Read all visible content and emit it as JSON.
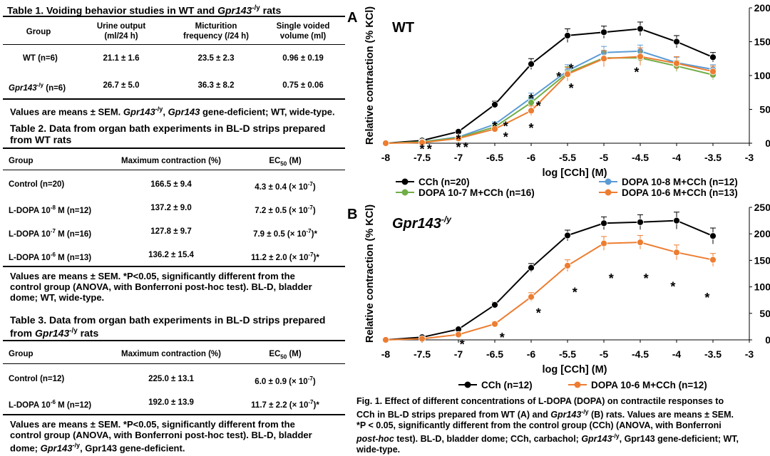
{
  "table1": {
    "title_prefix": "Table 1. Voiding behavior studies in WT and ",
    "title_gene": "Gpr143",
    "title_sup": "-/y",
    "title_suffix": " rats",
    "headers": [
      "Group",
      "Urine output",
      "(ml/24 h)",
      "Micturition",
      "frequency (/24 h)",
      "Single voided",
      "volume (ml)"
    ],
    "rows": [
      {
        "group": "WT (n=6)",
        "v1": "21.1 ± 1.6",
        "v2": "23.5 ± 2.3",
        "v3": "0.96 ± 0.19"
      },
      {
        "group_gene": "Gpr143",
        "group_sup": "-/y",
        "group_rest": " (n=6)",
        "v1": "26.7 ± 5.0",
        "v2": "36.3 ± 8.2",
        "v3": "0.75 ± 0.06"
      }
    ],
    "note_a": "Values are means ± SEM. ",
    "note_gene1": "Gpr143",
    "note_sup": "-/y",
    "note_b": ", ",
    "note_gene2": "Gpr143",
    "note_c": " gene-deficient; WT, wide-type."
  },
  "table2": {
    "title_line1": "Table 2. Data from organ bath experiments in BL-D strips prepared",
    "title_line2": "from WT rats",
    "headers": [
      "Group",
      "Maximum contraction (%)",
      "EC",
      "50",
      " (M)"
    ],
    "rows": [
      {
        "group": "Control (n=20)",
        "max": "166.5 ± 9.4",
        "ec": "4.3 ± 0.4 (× 10",
        "exp": "-7",
        "tail": ")"
      },
      {
        "group": "L-DOPA 10",
        "gexp": "-8",
        "grest": " M (n=12)",
        "max": "137.2 ± 9.0",
        "ec": "7.2 ± 0.5 (× 10",
        "exp": "-7",
        "tail": ")"
      },
      {
        "group": "L-DOPA 10",
        "gexp": "-7",
        "grest": " M (n=16)",
        "max": "127.8 ± 9.7",
        "ec": "7.9 ± 0.5 (× 10",
        "exp": "-7",
        "tail": ")*"
      },
      {
        "group": "L-DOPA 10",
        "gexp": "-6",
        "grest": " M (n=13)",
        "max": "136.2 ± 15.4",
        "ec": "11.2 ± 2.0 (× 10",
        "exp": "-7",
        "tail": ")*"
      }
    ],
    "note_line1": "Values are means ± SEM. *P<0.05, significantly different from the",
    "note_line2": "control group (ANOVA, with Bonferroni post-hoc test). BL-D, bladder",
    "note_line3": "dome; WT, wide-type."
  },
  "table3": {
    "title_line1": "Table 3. Data from organ bath experiments in BL-D strips prepared",
    "title_line2_a": "from ",
    "title_gene": "Gpr143",
    "title_sup": "-/y",
    "title_line2_b": " rats",
    "headers": [
      "Group",
      "Maximum contraction (%)",
      "EC",
      "50",
      " (M)"
    ],
    "rows": [
      {
        "group": "Control (n=12)",
        "max": "225.0 ± 13.1",
        "ec": "6.0 ± 0.9 (× 10",
        "exp": "-7",
        "tail": ")"
      },
      {
        "group": "L-DOPA 10",
        "gexp": "-6",
        "grest": " M (n=12)",
        "max": "192.0 ± 13.9",
        "ec": "11.7 ± 2.2 (× 10",
        "exp": "-7",
        "tail": ")*"
      }
    ],
    "note_line1": "Values are means ± SEM. *P<0.05, significantly different from the",
    "note_line2": "control group (ANOVA, with Bonferroni post-hoc test). BL-D, bladder",
    "note_line3_a": "dome; ",
    "note_gene": "Gpr143",
    "note_sup": "-/y",
    "note_line3_b": ", Gpr143 gene-deficient."
  },
  "colors": {
    "cch": "#000000",
    "dopa8": "#5b9bd5",
    "dopa7": "#70ad47",
    "dopa6": "#ed7d31",
    "error": "#888888"
  },
  "chart_data": [
    {
      "panel": "A",
      "type": "line",
      "title": "WT",
      "xlabel": "log [CCh] (M)",
      "ylabel": "Relative contraction (% KCl)",
      "xlim": [
        -8,
        -3
      ],
      "ylim": [
        0,
        200
      ],
      "xticks": [
        -8,
        -7.5,
        -7,
        -6.5,
        -6,
        -5.5,
        -5,
        -4.5,
        -4,
        -3.5,
        -3
      ],
      "yticks": [
        0,
        50,
        100,
        150,
        200
      ],
      "legend_position": "bottom",
      "series": [
        {
          "name": "CCh (n=20)",
          "color": "#000000",
          "x": [
            -8,
            -7.5,
            -7,
            -6.5,
            -6,
            -5.5,
            -5,
            -4.5,
            -4,
            -3.5
          ],
          "y": [
            0,
            4,
            17,
            57,
            117,
            159,
            164,
            169,
            150,
            127
          ],
          "err": [
            1,
            2,
            3,
            5,
            8,
            10,
            9,
            10,
            9,
            7
          ]
        },
        {
          "name": "DOPA 10-8 M+CCh (n=12)",
          "color": "#5b9bd5",
          "x": [
            -8,
            -7.5,
            -7,
            -6.5,
            -6,
            -5.5,
            -5,
            -4.5,
            -4,
            -3.5
          ],
          "y": [
            0,
            2,
            9,
            28,
            67,
            107,
            134,
            136,
            119,
            109
          ],
          "err": [
            1,
            1,
            2,
            4,
            7,
            9,
            9,
            9,
            8,
            7
          ]
        },
        {
          "name": "DOPA 10-7 M+CCh (n=16)",
          "color": "#70ad47",
          "x": [
            -8,
            -7.5,
            -7,
            -6.5,
            -6,
            -5.5,
            -5,
            -4.5,
            -4,
            -3.5
          ],
          "y": [
            0,
            2,
            8,
            24,
            60,
            104,
            126,
            126,
            114,
            101
          ],
          "err": [
            1,
            1,
            2,
            4,
            7,
            9,
            9,
            9,
            8,
            7
          ]
        },
        {
          "name": "DOPA 10-6 M+CCh (n=13)",
          "color": "#ed7d31",
          "x": [
            -8,
            -7.5,
            -7,
            -6.5,
            -6,
            -5.5,
            -5,
            -4.5,
            -4,
            -3.5
          ],
          "y": [
            0,
            1,
            7,
            21,
            48,
            102,
            125,
            128,
            118,
            106
          ],
          "err": [
            1,
            1,
            2,
            4,
            7,
            10,
            12,
            13,
            10,
            8
          ]
        }
      ],
      "annotations": [
        {
          "text": "*",
          "x": -7.5,
          "y": -7
        },
        {
          "text": "*",
          "x": -7.4,
          "y": -7
        },
        {
          "text": "*",
          "x": -7.0,
          "y": 8
        },
        {
          "text": "*",
          "x": -7.0,
          "y": -4
        },
        {
          "text": "*",
          "x": -6.9,
          "y": -4
        },
        {
          "text": "*",
          "x": -6.5,
          "y": 27
        },
        {
          "text": "*",
          "x": -6.35,
          "y": 27
        },
        {
          "text": "*",
          "x": -6.35,
          "y": 11
        },
        {
          "text": "*",
          "x": -6.0,
          "y": 68
        },
        {
          "text": "*",
          "x": -5.9,
          "y": 57
        },
        {
          "text": "*",
          "x": -6.0,
          "y": 24
        },
        {
          "text": "*",
          "x": -5.62,
          "y": 100
        },
        {
          "text": "*",
          "x": -5.45,
          "y": 112
        },
        {
          "text": "*",
          "x": -5.45,
          "y": 83
        },
        {
          "text": "*",
          "x": -4.55,
          "y": 107
        }
      ]
    },
    {
      "panel": "B",
      "type": "line",
      "title": "Gpr143-/y",
      "xlabel": "log [CCh] (M)",
      "ylabel": "Relative contraction (% KCl)",
      "xlim": [
        -8,
        -3
      ],
      "ylim": [
        0,
        250
      ],
      "xticks": [
        -8,
        -7.5,
        -7,
        -6.5,
        -6,
        -5.5,
        -5,
        -4.5,
        -4,
        -3.5,
        -3
      ],
      "yticks": [
        0,
        50,
        100,
        150,
        200,
        250
      ],
      "legend_position": "bottom",
      "series": [
        {
          "name": "CCh (n=12)",
          "color": "#000000",
          "x": [
            -8,
            -7.5,
            -7,
            -6.5,
            -6,
            -5.5,
            -5,
            -4.5,
            -4,
            -3.5
          ],
          "y": [
            0,
            5,
            20,
            66,
            136,
            197,
            220,
            222,
            225,
            196
          ],
          "err": [
            1,
            2,
            3,
            5,
            8,
            10,
            12,
            14,
            16,
            15
          ]
        },
        {
          "name": "DOPA 10-6 M+CCh (n=12)",
          "color": "#ed7d31",
          "x": [
            -8,
            -7.5,
            -7,
            -6.5,
            -6,
            -5.5,
            -5,
            -4.5,
            -4,
            -3.5
          ],
          "y": [
            0,
            2,
            10,
            30,
            81,
            140,
            182,
            184,
            165,
            151
          ],
          "err": [
            1,
            1,
            2,
            4,
            8,
            11,
            13,
            13,
            14,
            12
          ]
        }
      ],
      "annotations": [
        {
          "text": "*",
          "x": -6.95,
          "y": -6
        },
        {
          "text": "*",
          "x": -6.4,
          "y": 7
        },
        {
          "text": "*",
          "x": -5.9,
          "y": 53
        },
        {
          "text": "*",
          "x": -5.4,
          "y": 92
        },
        {
          "text": "*",
          "x": -4.9,
          "y": 118
        },
        {
          "text": "*",
          "x": -4.42,
          "y": 118
        },
        {
          "text": "*",
          "x": -4.05,
          "y": 103
        },
        {
          "text": "*",
          "x": -3.58,
          "y": 82
        }
      ]
    }
  ],
  "caption": {
    "line1": "Fig. 1. Effect of different concentrations of L-DOPA (DOPA) on contractile responses to",
    "line2_a": "CCh in BL-D strips prepared from WT (A) and ",
    "line2_gene": "Gpr143",
    "line2_sup": "-/y",
    "line2_b": " (B) rats. Values are means ± SEM.",
    "line3": "*P < 0.05, significantly different from the control group (CCh) (ANOVA, with Bonferroni",
    "line4_a": "post-hoc",
    "line4_b": " test). BL-D, bladder dome; CCh, carbachol; ",
    "line4_gene": "Gpr143",
    "line4_sup": "-/y",
    "line4_c": ", Gpr143 gene-deficient; WT,",
    "line5": "wide-type."
  }
}
